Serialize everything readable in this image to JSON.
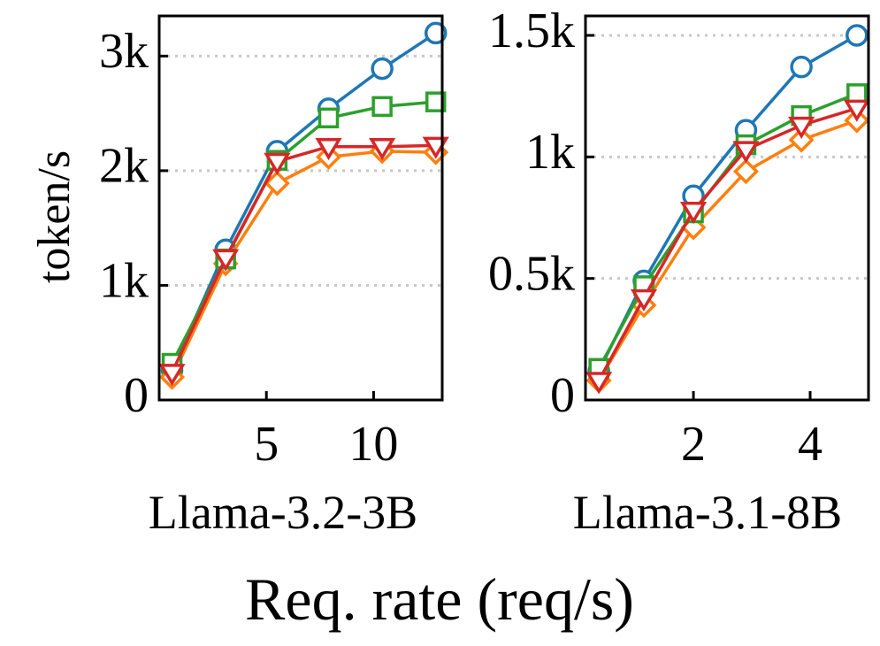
{
  "figure": {
    "ylabel": "token/s",
    "xlabel": "Req. rate (req/s)"
  },
  "chart_data": [
    {
      "type": "line",
      "title": "Llama-3.2-3B",
      "xlabel": "Llama-3.2-3B",
      "ylabel": "token/s",
      "xlim": [
        0,
        13.2
      ],
      "ylim": [
        0,
        3350
      ],
      "xticks": [
        5,
        10
      ],
      "xtick_labels": [
        "5",
        "10"
      ],
      "yticks": [
        0,
        1000,
        2000,
        3000
      ],
      "ytick_labels": [
        "0",
        "1k",
        "2k",
        "3k"
      ],
      "grid": "horizontal dotted",
      "series": [
        {
          "color": "#1f77b4",
          "marker": "circle",
          "x": [
            0.6,
            3.1,
            5.5,
            7.9,
            10.4,
            12.9
          ],
          "y": [
            260,
            1310,
            2170,
            2540,
            2890,
            3200
          ]
        },
        {
          "color": "#ff7f0e",
          "marker": "diamond",
          "x": [
            0.6,
            3.1,
            5.5,
            7.9,
            10.4,
            12.9
          ],
          "y": [
            200,
            1190,
            1890,
            2120,
            2170,
            2160
          ]
        },
        {
          "color": "#2ca02c",
          "marker": "square",
          "x": [
            0.6,
            3.1,
            5.5,
            7.9,
            10.4,
            12.9
          ],
          "y": [
            320,
            1230,
            2090,
            2460,
            2560,
            2600
          ]
        },
        {
          "color": "#d62728",
          "marker": "triangle-down",
          "x": [
            0.6,
            3.1,
            5.5,
            7.9,
            10.4,
            12.9
          ],
          "y": [
            240,
            1240,
            2080,
            2210,
            2210,
            2220
          ]
        }
      ]
    },
    {
      "type": "line",
      "title": "Llama-3.1-8B",
      "xlabel": "Llama-3.1-8B",
      "ylabel": "token/s",
      "xlim": [
        0.15,
        5.0
      ],
      "ylim": [
        0,
        1580
      ],
      "xticks": [
        2,
        4
      ],
      "xtick_labels": [
        "2",
        "4"
      ],
      "yticks": [
        0,
        500,
        1000,
        1500
      ],
      "ytick_labels": [
        "0",
        "0.5k",
        "1k",
        "1.5k"
      ],
      "grid": "horizontal dotted",
      "series": [
        {
          "color": "#1f77b4",
          "marker": "circle",
          "x": [
            0.38,
            1.15,
            2.0,
            2.9,
            3.85,
            4.8
          ],
          "y": [
            120,
            490,
            840,
            1110,
            1370,
            1500
          ]
        },
        {
          "color": "#ff7f0e",
          "marker": "diamond",
          "x": [
            0.38,
            1.15,
            2.0,
            2.9,
            3.85,
            4.8
          ],
          "y": [
            80,
            390,
            710,
            940,
            1070,
            1150
          ]
        },
        {
          "color": "#2ca02c",
          "marker": "square",
          "x": [
            0.38,
            1.15,
            2.0,
            2.9,
            3.85,
            4.8
          ],
          "y": [
            130,
            470,
            770,
            1050,
            1170,
            1260
          ]
        },
        {
          "color": "#d62728",
          "marker": "triangle-down",
          "x": [
            0.38,
            1.15,
            2.0,
            2.9,
            3.85,
            4.8
          ],
          "y": [
            80,
            420,
            780,
            1030,
            1130,
            1200
          ]
        }
      ]
    }
  ]
}
